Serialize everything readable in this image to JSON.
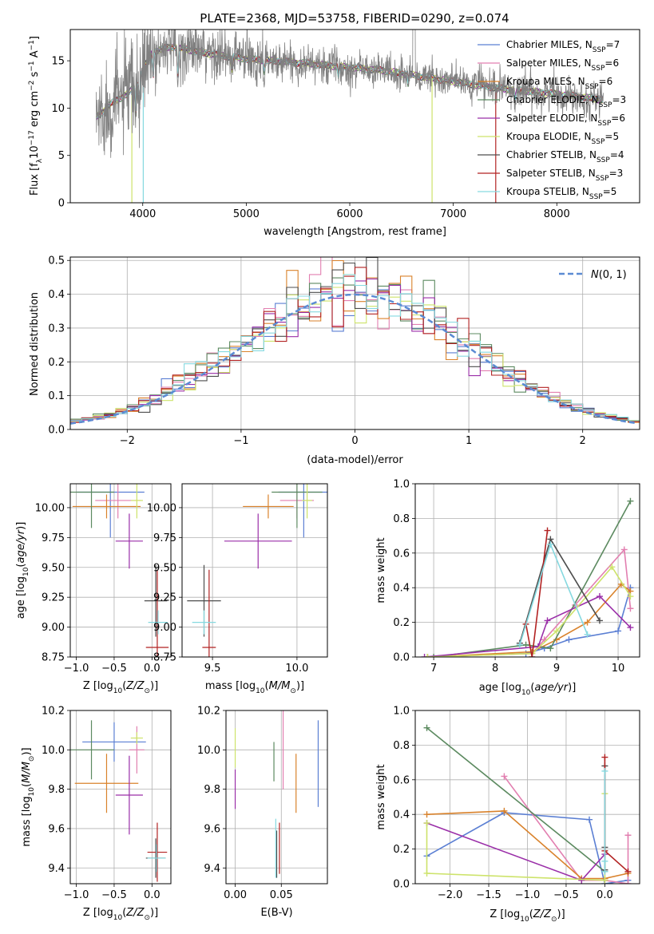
{
  "title": "PLATE=2368, MJD=53758, FIBERID=0290, z=0.074",
  "colors": {
    "Chabrier MILES": "#5b7fd3",
    "Salpeter MILES": "#e27fb0",
    "Kroupa MILES": "#d9822b",
    "Chabrier ELODIE": "#5c8a60",
    "Salpeter ELODIE": "#9a2ea8",
    "Kroupa ELODIE": "#cde36a",
    "Chabrier STELIB": "#4d4d4d",
    "Salpeter STELIB": "#b22222",
    "Kroupa STELIB": "#86d9e0",
    "data": "#808080"
  },
  "chart_data": [
    {
      "id": "spectrum",
      "type": "line",
      "xlabel": "wavelength [Angstrom, rest frame]",
      "ylabel": "Flux [f_λ 10^-17 erg cm^-2 s^-1 A^-1]",
      "xlim": [
        3300,
        8800
      ],
      "ylim": [
        0,
        18.3
      ],
      "xticks": [
        4000,
        5000,
        6000,
        7000,
        8000
      ],
      "yticks": [
        0,
        5,
        10,
        15
      ],
      "legend": [
        "Chabrier MILES, N_SSP=7",
        "Salpeter MILES, N_SSP=6",
        "Kroupa MILES, N_SSP=6",
        "Chabrier ELODIE, N_SSP=3",
        "Salpeter ELODIE, N_SSP=6",
        "Kroupa ELODIE, N_SSP=5",
        "Chabrier STELIB, N_SSP=4",
        "Salpeter STELIB, N_SSP=3",
        "Kroupa STELIB, N_SSP=5"
      ],
      "legend_position": "upper-right",
      "continuum": [
        [
          3550,
          9.0
        ],
        [
          3700,
          10.5
        ],
        [
          3850,
          11.5
        ],
        [
          3950,
          12.5
        ],
        [
          4000,
          14.0
        ],
        [
          4100,
          16.0
        ],
        [
          4300,
          16.5
        ],
        [
          4500,
          16.0
        ],
        [
          4800,
          15.5
        ],
        [
          5000,
          15.2
        ],
        [
          5500,
          14.8
        ],
        [
          6000,
          14.3
        ],
        [
          6300,
          14.0
        ],
        [
          6600,
          13.5
        ],
        [
          7000,
          12.8
        ],
        [
          7500,
          12.0
        ],
        [
          8000,
          11.5
        ],
        [
          8500,
          10.8
        ]
      ]
    },
    {
      "id": "residuals",
      "type": "line",
      "xlabel": "(data-model)/error",
      "ylabel": "Normed distribution",
      "xlim": [
        -2.5,
        2.5
      ],
      "ylim": [
        0,
        0.51
      ],
      "xticks": [
        -2,
        -1,
        0,
        1,
        2
      ],
      "yticks": [
        0.0,
        0.1,
        0.2,
        0.3,
        0.4,
        0.5
      ],
      "grid": true,
      "legend": [
        "N(0,1)"
      ],
      "legend_position": "upper-right"
    },
    {
      "id": "age_vs_Z",
      "type": "scatter",
      "xlabel": "Z [log10(Z/Z☉)]",
      "ylabel": "age [log10(age/yr)]",
      "xlim": [
        -1.08,
        0.25
      ],
      "ylim": [
        8.75,
        10.2
      ],
      "xticks": [
        -1.0,
        -0.5,
        0.0
      ],
      "yticks": [
        8.75,
        9.0,
        9.25,
        9.5,
        9.75,
        10.0
      ],
      "grid": true,
      "points": [
        {
          "s": "Chabrier MILES",
          "x": -0.55,
          "y": 10.13,
          "xerr": 0.45,
          "yerr": 0.38
        },
        {
          "s": "Salpeter MILES",
          "x": -0.45,
          "y": 10.06,
          "xerr": 0.3,
          "yerr": 0.15
        },
        {
          "s": "Kroupa MILES",
          "x": -0.6,
          "y": 10.01,
          "xerr": 0.45,
          "yerr": 0.1
        },
        {
          "s": "Chabrier ELODIE",
          "x": -0.8,
          "y": 10.13,
          "xerr": 0.3,
          "yerr": 0.3
        },
        {
          "s": "Salpeter ELODIE",
          "x": -0.3,
          "y": 9.72,
          "xerr": 0.18,
          "yerr": 0.23
        },
        {
          "s": "Kroupa ELODIE",
          "x": -0.2,
          "y": 10.06,
          "xerr": 0.08,
          "yerr": 0.15
        },
        {
          "s": "Chabrier STELIB",
          "x": 0.05,
          "y": 9.22,
          "xerr": 0.15,
          "yerr": 0.3
        },
        {
          "s": "Salpeter STELIB",
          "x": 0.07,
          "y": 8.83,
          "xerr": 0.15,
          "yerr": 0.65
        },
        {
          "s": "Kroupa STELIB",
          "x": 0.08,
          "y": 9.04,
          "xerr": 0.13,
          "yerr": 0.1
        }
      ]
    },
    {
      "id": "age_vs_mass",
      "type": "scatter",
      "xlabel": "mass [log10(M/M☉)]",
      "ylabel": "",
      "xlim": [
        9.32,
        10.18
      ],
      "ylim": [
        8.75,
        10.2
      ],
      "xticks": [
        9.5,
        10.0
      ],
      "yticks": [
        8.75,
        9.0,
        9.25,
        9.5,
        9.75,
        10.0
      ],
      "grid": true,
      "points": [
        {
          "s": "Chabrier MILES",
          "x": 10.04,
          "y": 10.13,
          "xerr": 0.15,
          "yerr": 0.38
        },
        {
          "s": "Salpeter MILES",
          "x": 10.0,
          "y": 10.06,
          "xerr": 0.1,
          "yerr": 0.15
        },
        {
          "s": "Kroupa MILES",
          "x": 9.83,
          "y": 10.01,
          "xerr": 0.15,
          "yerr": 0.1
        },
        {
          "s": "Chabrier ELODIE",
          "x": 10.0,
          "y": 10.13,
          "xerr": 0.15,
          "yerr": 0.3
        },
        {
          "s": "Salpeter ELODIE",
          "x": 9.77,
          "y": 9.72,
          "xerr": 0.2,
          "yerr": 0.23
        },
        {
          "s": "Kroupa ELODIE",
          "x": 10.06,
          "y": 10.06,
          "xerr": 0.03,
          "yerr": 0.15
        },
        {
          "s": "Chabrier STELIB",
          "x": 9.45,
          "y": 9.22,
          "xerr": 0.1,
          "yerr": 0.3
        },
        {
          "s": "Salpeter STELIB",
          "x": 9.48,
          "y": 8.83,
          "xerr": 0.04,
          "yerr": 0.65
        },
        {
          "s": "Kroupa STELIB",
          "x": 9.45,
          "y": 9.04,
          "xerr": 0.07,
          "yerr": 0.1
        }
      ]
    },
    {
      "id": "weight_vs_age",
      "type": "line",
      "xlabel": "age [log10(age/yr)]",
      "ylabel": "mass weight",
      "xlim": [
        6.7,
        10.35
      ],
      "ylim": [
        0,
        1.0
      ],
      "xticks": [
        7,
        8,
        9,
        10
      ],
      "yticks": [
        0.0,
        0.2,
        0.4,
        0.6,
        0.8,
        1.0
      ],
      "grid": true,
      "series": [
        {
          "name": "Chabrier MILES",
          "x": [
            6.9,
            8.5,
            8.8,
            9.2,
            10.0,
            10.2
          ],
          "y": [
            0.0,
            0.02,
            0.05,
            0.1,
            0.15,
            0.4
          ]
        },
        {
          "name": "Salpeter MILES",
          "x": [
            6.9,
            8.6,
            8.8,
            9.3,
            10.1,
            10.2
          ],
          "y": [
            0.0,
            0.02,
            0.1,
            0.3,
            0.62,
            0.28
          ]
        },
        {
          "name": "Kroupa MILES",
          "x": [
            6.9,
            8.6,
            9.0,
            9.5,
            10.05,
            10.2
          ],
          "y": [
            0.0,
            0.03,
            0.1,
            0.2,
            0.42,
            0.38
          ]
        },
        {
          "name": "Chabrier ELODIE",
          "x": [
            7.0,
            8.5,
            8.9,
            10.2
          ],
          "y": [
            0.0,
            0.07,
            0.05,
            0.9
          ]
        },
        {
          "name": "Salpeter ELODIE",
          "x": [
            6.85,
            8.7,
            8.85,
            9.7,
            10.2
          ],
          "y": [
            0.0,
            0.06,
            0.21,
            0.35,
            0.17
          ]
        },
        {
          "name": "Kroupa ELODIE",
          "x": [
            6.9,
            8.6,
            9.0,
            9.9,
            10.2
          ],
          "y": [
            0.0,
            0.02,
            0.15,
            0.52,
            0.35
          ]
        },
        {
          "name": "Chabrier STELIB",
          "x": [
            8.4,
            8.9,
            9.7
          ],
          "y": [
            0.08,
            0.68,
            0.21
          ]
        },
        {
          "name": "Salpeter STELIB",
          "x": [
            8.5,
            8.6,
            8.85
          ],
          "y": [
            0.19,
            0.0,
            0.73
          ]
        },
        {
          "name": "Kroupa STELIB",
          "x": [
            8.4,
            8.9,
            9.5
          ],
          "y": [
            0.07,
            0.65,
            0.13
          ]
        }
      ]
    },
    {
      "id": "mass_vs_Z",
      "type": "scatter",
      "xlabel": "Z [log10(Z/Z☉)]",
      "ylabel": "mass [log10(M/M☉)]",
      "xlim": [
        -1.08,
        0.25
      ],
      "ylim": [
        9.32,
        10.2
      ],
      "xticks": [
        -1.0,
        -0.5,
        0.0
      ],
      "yticks": [
        9.4,
        9.6,
        9.8,
        10.0,
        10.2
      ],
      "grid": true,
      "points": [
        {
          "s": "Chabrier MILES",
          "x": -0.5,
          "y": 10.04,
          "xerr": 0.42,
          "yerr": 0.1
        },
        {
          "s": "Salpeter MILES",
          "x": -0.2,
          "y": 10.0,
          "xerr": 0.1,
          "yerr": 0.12
        },
        {
          "s": "Kroupa MILES",
          "x": -0.6,
          "y": 9.83,
          "xerr": 0.42,
          "yerr": 0.15
        },
        {
          "s": "Chabrier ELODIE",
          "x": -0.8,
          "y": 10.0,
          "xerr": 0.3,
          "yerr": 0.15
        },
        {
          "s": "Salpeter ELODIE",
          "x": -0.3,
          "y": 9.77,
          "xerr": 0.18,
          "yerr": 0.2
        },
        {
          "s": "Kroupa ELODIE",
          "x": -0.2,
          "y": 10.06,
          "xerr": 0.08,
          "yerr": 0.03
        },
        {
          "s": "Chabrier STELIB",
          "x": 0.05,
          "y": 9.45,
          "xerr": 0.13,
          "yerr": 0.1
        },
        {
          "s": "Salpeter STELIB",
          "x": 0.07,
          "y": 9.48,
          "xerr": 0.13,
          "yerr": 0.15
        },
        {
          "s": "Kroupa STELIB",
          "x": 0.06,
          "y": 9.45,
          "xerr": 0.12,
          "yerr": 0.07
        }
      ]
    },
    {
      "id": "mass_vs_ebv",
      "type": "scatter",
      "xlabel": "E(B-V)",
      "ylabel": "",
      "xlim": [
        -0.01,
        0.1
      ],
      "ylim": [
        9.32,
        10.2
      ],
      "xticks": [
        0.0,
        0.05
      ],
      "yticks": [
        9.4,
        9.6,
        9.8,
        10.0,
        10.2
      ],
      "grid": true,
      "points": [
        {
          "s": "Chabrier MILES",
          "x": 0.09,
          "y": 9.93,
          "xerr": 0,
          "yerr": 0.22
        },
        {
          "s": "Salpeter MILES",
          "x": 0.052,
          "y": 10.0,
          "xerr": 0,
          "yerr": 0.2
        },
        {
          "s": "Kroupa MILES",
          "x": 0.066,
          "y": 9.83,
          "xerr": 0,
          "yerr": 0.15
        },
        {
          "s": "Chabrier ELODIE",
          "x": 0.042,
          "y": 9.94,
          "xerr": 0,
          "yerr": 0.1
        },
        {
          "s": "Salpeter ELODIE",
          "x": 0.0,
          "y": 9.8,
          "xerr": 0,
          "yerr": 0.1
        },
        {
          "s": "Kroupa ELODIE",
          "x": 0.0,
          "y": 10.01,
          "xerr": 0,
          "yerr": 0.1
        },
        {
          "s": "Chabrier STELIB",
          "x": 0.045,
          "y": 9.47,
          "xerr": 0,
          "yerr": 0.12
        },
        {
          "s": "Salpeter STELIB",
          "x": 0.048,
          "y": 9.5,
          "xerr": 0,
          "yerr": 0.13
        },
        {
          "s": "Kroupa STELIB",
          "x": 0.044,
          "y": 9.5,
          "xerr": 0,
          "yerr": 0.15
        }
      ]
    },
    {
      "id": "weight_vs_Z",
      "type": "line",
      "xlabel": "Z [log10(Z/Z☉)]",
      "ylabel": "mass weight",
      "xlim": [
        -2.45,
        0.45
      ],
      "ylim": [
        0,
        1.0
      ],
      "xticks": [
        -2.0,
        -1.5,
        -1.0,
        -0.5,
        0.0
      ],
      "yticks": [
        0.0,
        0.2,
        0.4,
        0.6,
        0.8,
        1.0
      ],
      "grid": true,
      "series": [
        {
          "name": "Chabrier MILES",
          "x": [
            -2.3,
            -1.3,
            -0.2,
            0.0,
            0.3
          ],
          "y": [
            0.16,
            0.41,
            0.37,
            0.0,
            0.02
          ]
        },
        {
          "name": "Salpeter MILES",
          "x": [
            -1.3,
            -0.3,
            0.0,
            0.3,
            0.3
          ],
          "y": [
            0.62,
            0.02,
            0.02,
            0.0,
            0.28
          ]
        },
        {
          "name": "Kroupa MILES",
          "x": [
            -2.3,
            -1.3,
            -0.3,
            0.0,
            0.3
          ],
          "y": [
            0.4,
            0.42,
            0.03,
            0.03,
            0.06
          ]
        },
        {
          "name": "Chabrier ELODIE",
          "x": [
            -2.3,
            0.0
          ],
          "y": [
            0.9,
            0.07
          ]
        },
        {
          "name": "Salpeter ELODIE",
          "x": [
            -2.3,
            -0.3,
            0.0
          ],
          "y": [
            0.35,
            0.02,
            0.17
          ]
        },
        {
          "name": "Kroupa ELODIE",
          "x": [
            -2.3,
            -2.3,
            0.0,
            0.0
          ],
          "y": [
            0.35,
            0.06,
            0.02,
            0.52
          ]
        },
        {
          "name": "Chabrier STELIB",
          "x": [
            0.0,
            0.0,
            0.0
          ],
          "y": [
            0.68,
            0.21,
            0.08
          ]
        },
        {
          "name": "Salpeter STELIB",
          "x": [
            0.0,
            0.0,
            0.3
          ],
          "y": [
            0.73,
            0.19,
            0.07
          ]
        },
        {
          "name": "Kroupa STELIB",
          "x": [
            0.0,
            0.0,
            0.0
          ],
          "y": [
            0.65,
            0.13,
            0.07
          ]
        }
      ]
    }
  ]
}
